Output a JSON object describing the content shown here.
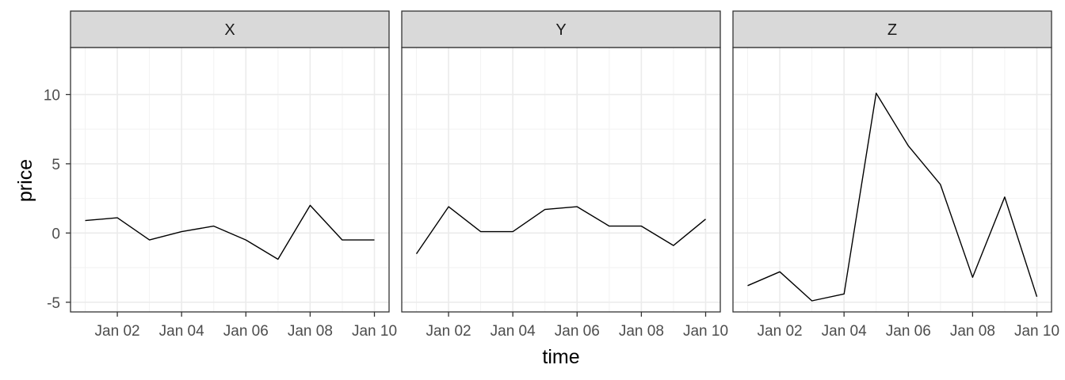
{
  "chart_data": {
    "type": "line",
    "xlabel": "time",
    "ylabel": "price",
    "x": [
      "Jan 01",
      "Jan 02",
      "Jan 03",
      "Jan 04",
      "Jan 05",
      "Jan 06",
      "Jan 07",
      "Jan 08",
      "Jan 09",
      "Jan 10"
    ],
    "x_ticks": [
      "Jan 02",
      "Jan 04",
      "Jan 06",
      "Jan 08",
      "Jan 10"
    ],
    "y_ticks": [
      "-5",
      "0",
      "5",
      "10"
    ],
    "ylim": [
      -5.7,
      13.4
    ],
    "grid": true,
    "line_color": "#000000",
    "panels": [
      {
        "name": "X",
        "values": [
          0.9,
          1.1,
          -0.5,
          0.1,
          0.5,
          -0.5,
          -1.9,
          2.0,
          -0.5,
          -0.5
        ]
      },
      {
        "name": "Y",
        "values": [
          -1.5,
          1.9,
          0.1,
          0.1,
          1.7,
          1.9,
          0.5,
          0.5,
          -0.9,
          1.0
        ]
      },
      {
        "name": "Z",
        "values": [
          -3.8,
          -2.8,
          -4.9,
          -4.4,
          10.1,
          6.3,
          3.5,
          -3.2,
          2.6,
          -4.6
        ]
      }
    ]
  }
}
